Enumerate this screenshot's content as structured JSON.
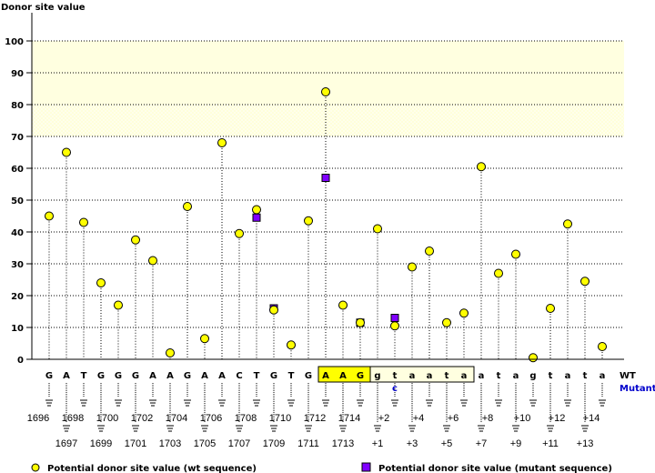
{
  "chart_data": {
    "type": "scatter",
    "title": "",
    "ylabel": "Donor site value",
    "ylim": [
      0,
      105
    ],
    "yticks": [
      0,
      10,
      20,
      30,
      40,
      50,
      60,
      70,
      80,
      90,
      100
    ],
    "grid": true,
    "threshold_band": [
      70,
      100
    ],
    "positions": [
      "1696",
      "1697",
      "1698",
      "1699",
      "1700",
      "1701",
      "1702",
      "1703",
      "1704",
      "1705",
      "1706",
      "1707",
      "1708",
      "1709",
      "1710",
      "1711",
      "1712",
      "1713",
      "1714",
      "+1",
      "+2",
      "+3",
      "+4",
      "+5",
      "+6",
      "+7",
      "+8",
      "+9",
      "+10",
      "+11",
      "+12",
      "+13",
      "+14"
    ],
    "wt_sequence": [
      "G",
      "A",
      "T",
      "G",
      "G",
      "G",
      "A",
      "A",
      "G",
      "A",
      "A",
      "C",
      "T",
      "G",
      "T",
      "G",
      "A",
      "A",
      "G",
      "g",
      "t",
      "a",
      "a",
      "t",
      "a",
      "a",
      "t",
      "a",
      "g",
      "t",
      "a",
      "t",
      "a"
    ],
    "exon_highlight": [
      16,
      18
    ],
    "intron_box": [
      19,
      24
    ],
    "mutant_bases": [
      {
        "index": 20,
        "base": "c"
      }
    ],
    "row_labels": {
      "wt": "WT",
      "mutant": "Mutant"
    },
    "series": [
      {
        "name": "Potential donor site value (wt sequence)",
        "color": "#ffff00",
        "values": [
          45,
          65,
          43,
          24,
          17,
          37.5,
          31,
          2,
          48,
          6.5,
          68,
          39.5,
          47,
          15.5,
          4.5,
          43.5,
          84,
          17,
          11.5,
          41,
          10.5,
          29,
          34,
          11.5,
          14.5,
          60.5,
          27,
          33,
          0.5,
          16,
          42.5,
          24.5,
          4
        ]
      },
      {
        "name": "Potential donor site value (mutant sequence)",
        "color": "#8000ff",
        "points": [
          {
            "index": 12,
            "value": 44.5
          },
          {
            "index": 13,
            "value": 16
          },
          {
            "index": 16,
            "value": 57
          },
          {
            "index": 18,
            "value": 11.5
          },
          {
            "index": 20,
            "value": 13
          }
        ]
      }
    ]
  }
}
